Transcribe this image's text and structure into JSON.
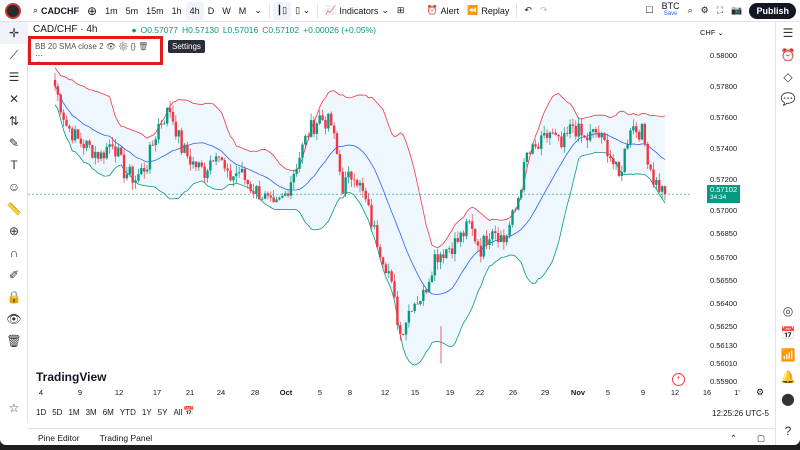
{
  "toolbar": {
    "symbol": "CADCHF",
    "intervals": [
      "1m",
      "5m",
      "15m",
      "1h",
      "4h",
      "D",
      "W",
      "M"
    ],
    "active_interval": "4h",
    "indicators": "Indicators",
    "alert": "Alert",
    "replay": "Replay",
    "layout_name": "BTC",
    "save": "Save",
    "publish": "Publish"
  },
  "legend": {
    "title": "CAD/CHF · 4h",
    "open": "O0.57077",
    "high": "H0.57130",
    "low": "L0.57016",
    "close": "C0.57102",
    "change": "+0.00026 (+0.05%)"
  },
  "tooltip": "Settings",
  "indicator": {
    "label": "BB 20 SMA close 2"
  },
  "price_axis": {
    "currency": "CHF",
    "ticks": [
      "0.58000",
      "0.57800",
      "0.57600",
      "0.57400",
      "0.57200",
      "0.57000",
      "0.56850",
      "0.56700",
      "0.56550",
      "0.56400",
      "0.56250",
      "0.56130",
      "0.56010",
      "0.55900"
    ],
    "last_price": "0.57102",
    "countdown": "34:34"
  },
  "x_axis": [
    "4",
    "9",
    "12",
    "17",
    "21",
    "24",
    "28",
    "Oct",
    "5",
    "8",
    "12",
    "15",
    "19",
    "22",
    "26",
    "29",
    "Nov",
    "5",
    "9",
    "12",
    "16",
    "1'"
  ],
  "brand": "TradingView",
  "ranges": [
    "1D",
    "5D",
    "1M",
    "3M",
    "6M",
    "YTD",
    "1Y",
    "5Y",
    "All"
  ],
  "time": "12:25:26 UTC-5",
  "bottom_tabs": [
    "Pine Editor",
    "Trading Panel"
  ],
  "colors": {
    "up": "#089981",
    "down": "#f23645",
    "upper": "#f23645",
    "lower": "#089981",
    "basis": "#2962ff",
    "fill": "#e3f2fd"
  },
  "chart_data": {
    "type": "candlestick",
    "symbol": "CAD/CHF",
    "interval": "4h",
    "ylim": [
      0.559,
      0.5815
    ],
    "closes": [
      0.578,
      0.5755,
      0.5745,
      0.574,
      0.5735,
      0.5745,
      0.5725,
      0.572,
      0.573,
      0.5755,
      0.5765,
      0.574,
      0.573,
      0.5725,
      0.574,
      0.572,
      0.5725,
      0.5715,
      0.571,
      0.57,
      0.571,
      0.573,
      0.575,
      0.576,
      0.5755,
      0.5715,
      0.5725,
      0.5705,
      0.568,
      0.566,
      0.562,
      0.564,
      0.5645,
      0.567,
      0.5675,
      0.568,
      0.569,
      0.5675,
      0.569,
      0.568,
      0.57,
      0.5735,
      0.574,
      0.575,
      0.574,
      0.5755,
      0.5745,
      0.575,
      0.574,
      0.572,
      0.5755,
      0.575,
      0.572,
      0.571
    ]
  }
}
